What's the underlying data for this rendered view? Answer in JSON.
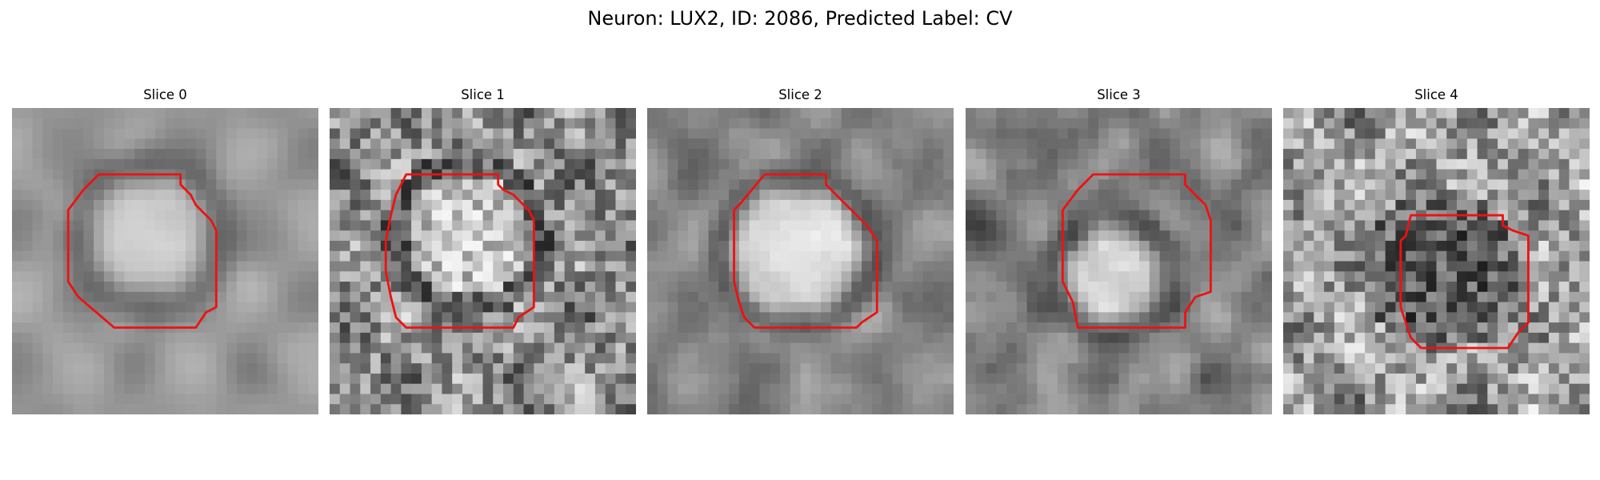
{
  "figure": {
    "title": "Neuron: LUX2, ID: 2086, Predicted Label: CV"
  },
  "panels": [
    {
      "title": "Slice 0"
    },
    {
      "title": "Slice 1"
    },
    {
      "title": "Slice 2"
    },
    {
      "title": "Slice 3"
    },
    {
      "title": "Slice 4"
    }
  ],
  "colors": {
    "contour": "#ee1111",
    "background": "#ffffff"
  }
}
